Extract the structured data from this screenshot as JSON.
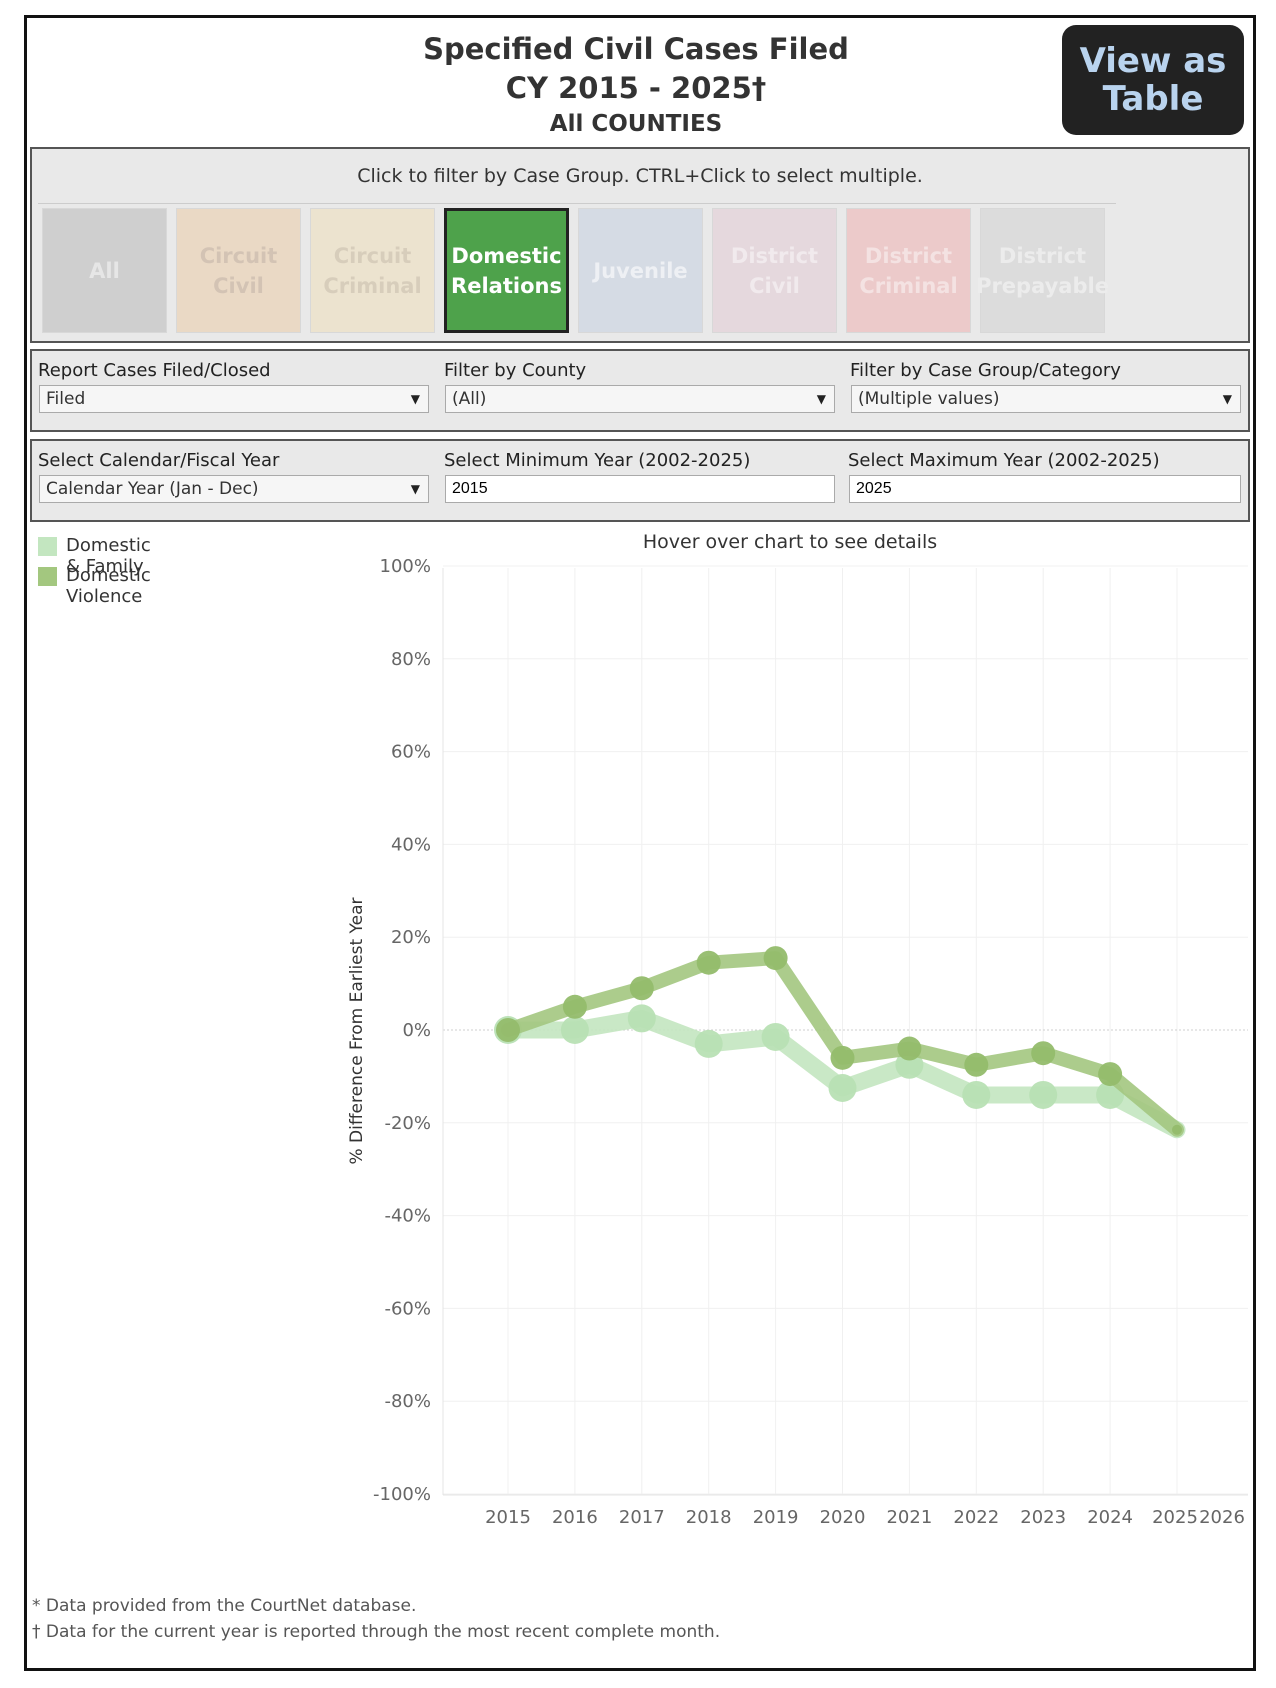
{
  "header": {
    "title_line1": "Specified Civil Cases Filed",
    "title_line2": "CY 2015 - 2025†",
    "title_line3": "All COUNTIES",
    "view_as_table_line1": "View as",
    "view_as_table_line2": "Table"
  },
  "case_group_filter": {
    "instruction": "Click to filter by Case Group. CTRL+Click to select multiple.",
    "tiles": [
      {
        "line1": "All",
        "line2": "",
        "bg": "#cfcfcf",
        "fg": "#e6e6e6",
        "selected": false
      },
      {
        "line1": "Circuit Civil",
        "line2": "",
        "bg": "#ead9c5",
        "fg": "#d3c3b4",
        "selected": false
      },
      {
        "line1": "Circuit",
        "line2": "Criminal",
        "bg": "#ece3cf",
        "fg": "#d7cdbb",
        "selected": false
      },
      {
        "line1": "Domestic",
        "line2": "Relations",
        "bg": "#4ea24b",
        "fg": "#ffffff",
        "selected": true
      },
      {
        "line1": "Juvenile",
        "line2": "",
        "bg": "#d5dbe4",
        "fg": "#eef0f4",
        "selected": false
      },
      {
        "line1": "District",
        "line2": "Civil",
        "bg": "#e5d8dd",
        "fg": "#f1eaed",
        "selected": false
      },
      {
        "line1": "District",
        "line2": "Criminal",
        "bg": "#eccaca",
        "fg": "#f4e2e2",
        "selected": false
      },
      {
        "line1": "District",
        "line2": "Prepayable",
        "bg": "#dcdcdc",
        "fg": "#ececec",
        "selected": false
      }
    ]
  },
  "filters": {
    "report_label": "Report Cases Filed/Closed",
    "report_value": "Filed",
    "county_label": "Filter by County",
    "county_value": "(All)",
    "category_label": "Filter by Case Group/Category",
    "category_value": "(Multiple values)",
    "year_type_label": "Select Calendar/Fiscal Year",
    "year_type_value": "Calendar Year (Jan - Dec)",
    "min_year_label": "Select Minimum Year (2002-2025)",
    "min_year_value": "2015",
    "max_year_label": "Select Maximum Year (2002-2025)",
    "max_year_value": "2025"
  },
  "hover_note": "Hover over chart to see details",
  "chart_data": {
    "type": "line",
    "title": "",
    "xlabel": "",
    "ylabel": "% Difference From Earliest Year",
    "x": [
      2015,
      2016,
      2017,
      2018,
      2019,
      2020,
      2021,
      2022,
      2023,
      2024,
      2025
    ],
    "x_ticks": [
      "2015",
      "2016",
      "2017",
      "2018",
      "2019",
      "2020",
      "2021",
      "2022",
      "2023",
      "2024",
      "2025",
      "2026"
    ],
    "y_ticks": [
      "100%",
      "80%",
      "60%",
      "40%",
      "20%",
      "0%",
      "-20%",
      "-40%",
      "-60%",
      "-80%",
      "-100%"
    ],
    "xlim": [
      2014,
      2026
    ],
    "ylim": [
      -100,
      100
    ],
    "series": [
      {
        "name": "Domestic & Family",
        "color": "#c3e6c0",
        "values": [
          0,
          0,
          2.5,
          -3,
          -1.5,
          -12.5,
          -7.5,
          -14,
          -14,
          -14,
          -21.5
        ]
      },
      {
        "name": "Domestic Violence",
        "color": "#a3c77f",
        "values": [
          0,
          5,
          9,
          14.5,
          15.5,
          -6,
          -4,
          -7.5,
          -5,
          -9.5,
          -21.5
        ]
      }
    ]
  },
  "footnotes": {
    "note1": "* Data provided from the CourtNet database.",
    "note2": "† Data for the current year is reported through the most recent complete month."
  }
}
